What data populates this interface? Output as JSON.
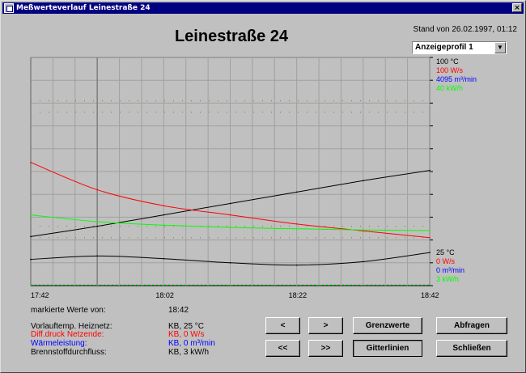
{
  "window": {
    "title": "Meßwerteverlauf Leinestraße 24",
    "close": "×"
  },
  "header": {
    "title": "Leinestraße 24",
    "stand": "Stand von 26.02.1997, 01:12"
  },
  "profile_select": {
    "value": "Anzeigeprofil 1",
    "arrow": "▼"
  },
  "chart_data": {
    "type": "line",
    "x": [
      "17:42",
      "17:52",
      "18:02",
      "18:12",
      "18:22",
      "18:32",
      "18:42"
    ],
    "x_ticks": [
      "17:42",
      "18:02",
      "18:22",
      "18:42"
    ],
    "series": [
      {
        "color": "#000000",
        "values": [
          21.5,
          26,
          31,
          36,
          41,
          46,
          50.5
        ]
      },
      {
        "color": "#ff0000",
        "values": [
          54,
          42,
          35,
          31,
          27,
          24,
          21
        ]
      },
      {
        "color": "#00ff00",
        "values": [
          31,
          28,
          26.5,
          25.5,
          24.9,
          24.4,
          24.1
        ]
      },
      {
        "color": "#000000",
        "values": [
          11.5,
          13,
          11.8,
          10,
          9,
          10.5,
          14.5
        ]
      }
    ],
    "ylim": [
      0,
      100
    ],
    "max_labels": [
      {
        "text": "100 °C",
        "color": "#000000"
      },
      {
        "text": "100 W/s",
        "color": "#ff0000"
      },
      {
        "text": "4095 m³/min",
        "color": "#0000ff"
      },
      {
        "text": "40 kW/h",
        "color": "#00ff00"
      }
    ],
    "min_labels": [
      {
        "text": "25 °C",
        "color": "#000000"
      },
      {
        "text": "0 W/s",
        "color": "#ff0000"
      },
      {
        "text": "0 m³/min",
        "color": "#0000ff"
      },
      {
        "text": "3 kW/h",
        "color": "#00ff00"
      }
    ],
    "thresholds": [
      {
        "color": "#808000",
        "value": 81
      },
      {
        "color": "#808000",
        "value": 76
      },
      {
        "color": "#808000",
        "value": 26
      },
      {
        "color": "#808000",
        "value": 21
      }
    ],
    "grid": true,
    "cursor_x": [
      "17:42",
      "17:52"
    ]
  },
  "marked": {
    "label": "markierte Werte von:",
    "value": "18:42"
  },
  "values": [
    {
      "label": "Vorlauftemp. Heiznetz:",
      "value": "KB, 25 °C",
      "color": "#000000"
    },
    {
      "label": "Diff.druck Netzende:",
      "value": "KB, 0 W/s",
      "color": "#ff0000"
    },
    {
      "label": "Wärmeleistung:",
      "value": "KB, 0 m³/min",
      "color": "#0000ff"
    },
    {
      "label": "Brennstoffdurchfluss:",
      "value": "KB, 3 kW/h",
      "color": "#000000"
    }
  ],
  "buttons": {
    "prev": "<",
    "next": ">",
    "first": "<<",
    "last": ">>",
    "limits": "Grenzwerte",
    "grid": "Gitterlinien",
    "query": "Abfragen",
    "close": "Schließen"
  }
}
